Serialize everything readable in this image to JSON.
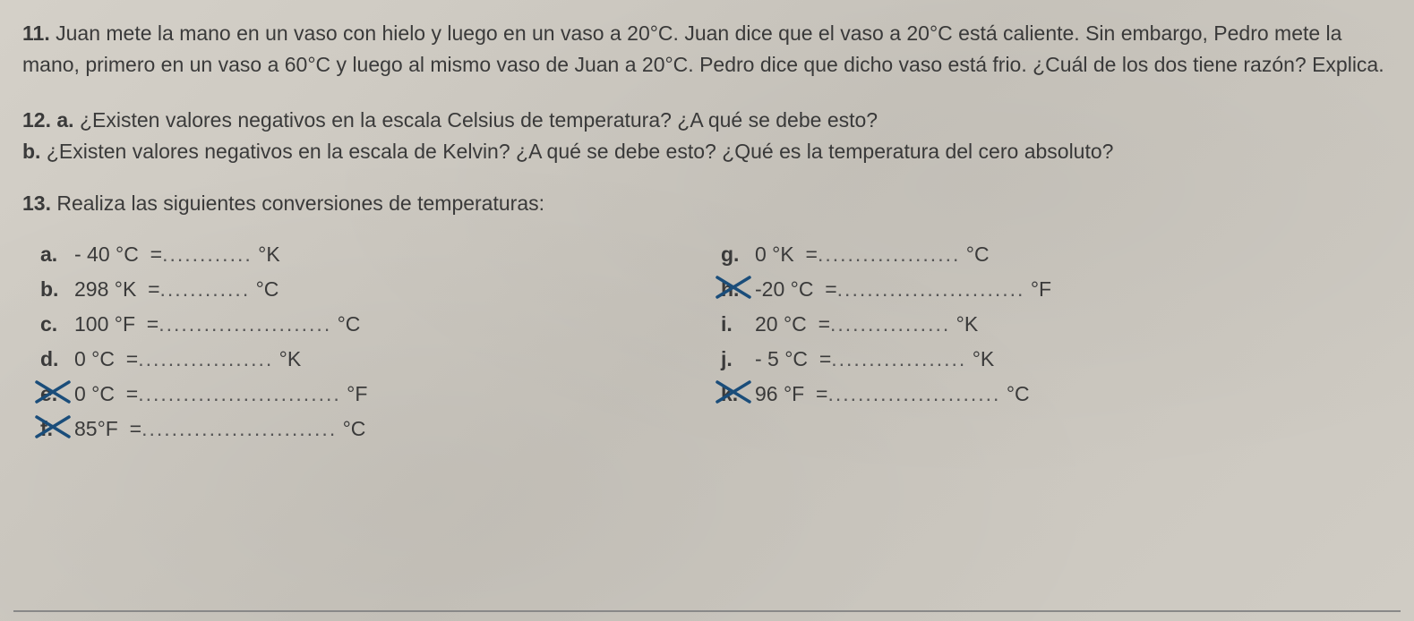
{
  "q11": {
    "num": "11.",
    "text": "Juan mete la mano en un vaso con hielo y luego en un vaso a 20°C. Juan dice que el vaso a 20°C está caliente. Sin embargo, Pedro mete la mano, primero en un vaso a 60°C y luego al mismo vaso de Juan a 20°C. Pedro dice que dicho vaso está frio. ¿Cuál de los dos tiene razón? Explica."
  },
  "q12": {
    "num": "12.",
    "a_label": "a.",
    "a_text": "¿Existen valores negativos en la escala Celsius de temperatura? ¿A qué se debe esto?",
    "b_label": "b.",
    "b_text": "¿Existen valores negativos en la escala de Kelvin? ¿A qué se debe esto? ¿Qué es la temperatura del cero absoluto?"
  },
  "q13": {
    "num": "13.",
    "text": "Realiza las siguientes conversiones de temperaturas:",
    "items_left": [
      {
        "label": "a.",
        "lhs": "- 40 °C",
        "eq": "=",
        "dots": "............",
        "rhs": "°K",
        "crossed": false
      },
      {
        "label": "b.",
        "lhs": "298 °K",
        "eq": "=",
        "dots": "............",
        "rhs": "°C",
        "crossed": false
      },
      {
        "label": "c.",
        "lhs": "100 °F",
        "eq": "=",
        "dots": ".......................",
        "rhs": "°C",
        "crossed": false
      },
      {
        "label": "d.",
        "lhs": "0 °C",
        "eq": "=",
        "dots": "..................",
        "rhs": "°K",
        "crossed": false
      },
      {
        "label": "e.",
        "lhs": "0 °C",
        "eq": "=",
        "dots": "...........................",
        "rhs": "°F",
        "crossed": true
      },
      {
        "label": "f.",
        "lhs": "85°F",
        "eq": "=",
        "dots": "..........................",
        "rhs": "°C",
        "crossed": true
      }
    ],
    "items_right": [
      {
        "label": "g.",
        "lhs": "0 °K",
        "eq": "=",
        "dots": "...................",
        "rhs": "°C",
        "crossed": false
      },
      {
        "label": "h.",
        "lhs": "-20 °C",
        "eq": "=",
        "dots": ".........................",
        "rhs": "°F",
        "crossed": true
      },
      {
        "label": "i.",
        "lhs": "20 °C",
        "eq": "=",
        "dots": "................",
        "rhs": "°K",
        "crossed": false
      },
      {
        "label": "j.",
        "lhs": "- 5 °C",
        "eq": "=",
        "dots": "..................",
        "rhs": "°K",
        "crossed": false
      },
      {
        "label": "k.",
        "lhs": "96 °F",
        "eq": "=",
        "dots": ".......................",
        "rhs": "°C",
        "crossed": true
      }
    ]
  },
  "colors": {
    "text": "#3a3a3a",
    "pen": "#1a4d7a",
    "paper": "#d0ccc4"
  }
}
